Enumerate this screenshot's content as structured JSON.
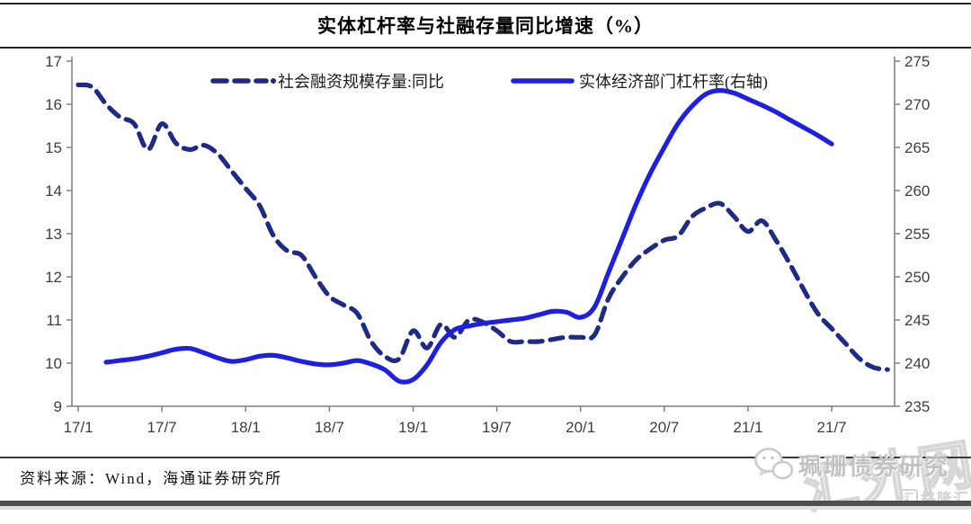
{
  "title": "实体杠杆率与社融存量同比增速（%）",
  "source_note": "资料来源：Wind，海通证券研究所",
  "watermarks": {
    "wechat_account": "珮珊债券研究",
    "site_watermark": "汇外网",
    "logo_text": "格隆汇",
    "logo_icon_char": "汇"
  },
  "colors": {
    "dashed_line": "#1e2a84",
    "solid_line": "#1f1ee3",
    "axis": "#7f7f7f",
    "tick_text": "#3d3d3d",
    "legend_text": "#1a1a1a",
    "divider": "#262626"
  },
  "chart_data": {
    "type": "line",
    "title": "实体杠杆率与社融存量同比增速（%）",
    "grid": false,
    "legend_position": "top",
    "x_axis": {
      "tick_labels": [
        "17/1",
        "17/7",
        "18/1",
        "18/7",
        "19/1",
        "19/7",
        "20/1",
        "20/7",
        "21/1",
        "21/7"
      ],
      "months_per_tick": 6,
      "start_month": "2017-01",
      "end_month": "2021-11"
    },
    "left_axis": {
      "min": 9,
      "max": 17,
      "tick_step": 1,
      "tick_labels": [
        "17",
        "16",
        "15",
        "14",
        "13",
        "12",
        "11",
        "10",
        "9"
      ]
    },
    "right_axis": {
      "min": 235,
      "max": 275,
      "tick_step": 5,
      "tick_labels": [
        "275",
        "270",
        "265",
        "260",
        "255",
        "250",
        "245",
        "240",
        "235"
      ]
    },
    "series": [
      {
        "name": "社会融资规模存量:同比",
        "axis": "left",
        "line_style": "dashed",
        "color": "#1e2a84",
        "start_month": "2017-01",
        "start_offset_months": 0,
        "monthly_values": [
          16.45,
          16.4,
          16.0,
          15.7,
          15.55,
          14.95,
          15.55,
          15.1,
          14.95,
          15.05,
          14.85,
          14.45,
          14.05,
          13.65,
          12.95,
          12.6,
          12.5,
          12.0,
          11.55,
          11.35,
          11.15,
          10.5,
          10.15,
          10.1,
          10.75,
          10.35,
          10.9,
          10.6,
          11.0,
          10.95,
          10.75,
          10.5,
          10.5,
          10.5,
          10.55,
          10.6,
          10.6,
          10.65,
          11.5,
          12.0,
          12.4,
          12.65,
          12.85,
          12.95,
          13.4,
          13.6,
          13.7,
          13.4,
          13.05,
          13.3,
          12.85,
          12.3,
          11.7,
          11.15,
          10.8,
          10.45,
          10.1,
          9.9,
          9.85
        ]
      },
      {
        "name": "实体经济部门杠杆率(右轴)",
        "axis": "right",
        "line_style": "solid",
        "color": "#1f1ee3",
        "start_month": "2017-03",
        "start_offset_months": 2,
        "monthly_values": [
          240.1,
          240.3,
          240.5,
          240.8,
          241.2,
          241.6,
          241.7,
          241.2,
          240.6,
          240.2,
          240.4,
          240.8,
          240.9,
          240.6,
          240.2,
          239.9,
          239.8,
          240.0,
          240.3,
          239.9,
          239.2,
          237.9,
          238.1,
          239.8,
          242.4,
          243.9,
          244.3,
          244.6,
          244.8,
          245.0,
          245.2,
          245.6,
          246.0,
          245.9,
          245.3,
          246.5,
          250.5,
          254.5,
          258.5,
          262.0,
          265.0,
          267.8,
          269.8,
          271.2,
          271.6,
          271.3,
          270.6,
          269.9,
          269.1,
          268.2,
          267.3,
          266.4,
          265.4
        ]
      }
    ]
  }
}
